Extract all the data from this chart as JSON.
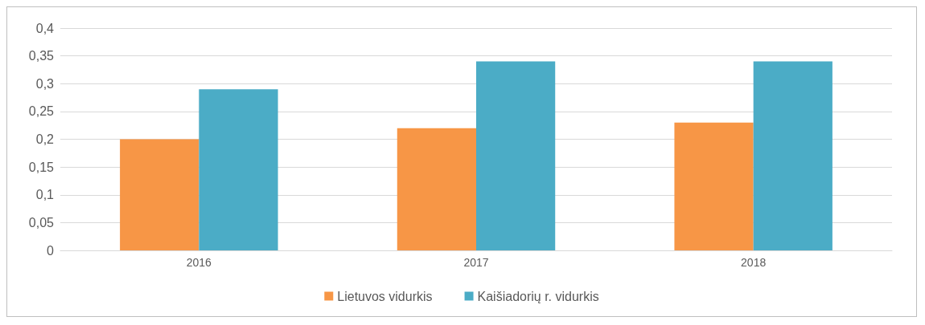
{
  "chart_data": {
    "type": "bar",
    "categories": [
      "2016",
      "2017",
      "2018"
    ],
    "series": [
      {
        "name": "Lietuvos vidurkis",
        "color": "#f79646",
        "values": [
          0.2,
          0.22,
          0.23
        ]
      },
      {
        "name": "Kaišiadorių r. vidurkis",
        "color": "#4bacc6",
        "values": [
          0.29,
          0.34,
          0.34
        ]
      }
    ],
    "ylim": [
      0,
      0.4
    ],
    "yticks": [
      {
        "value": 0,
        "label": "0"
      },
      {
        "value": 0.05,
        "label": "0,05"
      },
      {
        "value": 0.1,
        "label": "0,1"
      },
      {
        "value": 0.15,
        "label": "0,15"
      },
      {
        "value": 0.2,
        "label": "0,2"
      },
      {
        "value": 0.25,
        "label": "0,25"
      },
      {
        "value": 0.3,
        "label": "0,3"
      },
      {
        "value": 0.35,
        "label": "0,35"
      },
      {
        "value": 0.4,
        "label": "0,4"
      }
    ],
    "grid": "y",
    "legend": "bottom"
  }
}
